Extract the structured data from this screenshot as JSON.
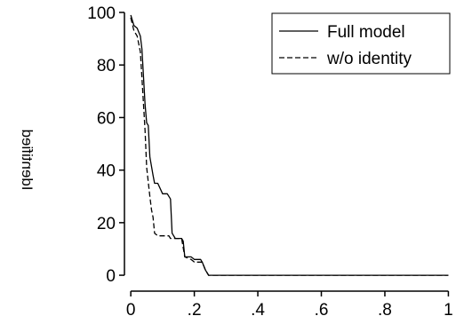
{
  "chart_data": {
    "type": "line",
    "title": "",
    "xlabel": "",
    "ylabel": "Identified",
    "ylabel_mirrored": true,
    "xlim": [
      -0.02,
      1.01
    ],
    "ylim": [
      -2,
      100
    ],
    "x_ticks": [
      0,
      0.2,
      0.4,
      0.6,
      0.8,
      1
    ],
    "x_tick_labels": [
      "0",
      ".2",
      ".4",
      ".6",
      ".8",
      "1"
    ],
    "y_ticks": [
      0,
      20,
      40,
      60,
      80,
      100
    ],
    "y_tick_labels": [
      "0",
      "20",
      "40",
      "60",
      "80",
      "100"
    ],
    "grid": false,
    "legend_position": "top-right",
    "series": [
      {
        "name": "Full model",
        "style": "solid",
        "color": "#000000",
        "points": [
          [
            0.0,
            99
          ],
          [
            0.01,
            95
          ],
          [
            0.02,
            94
          ],
          [
            0.03,
            91
          ],
          [
            0.035,
            86
          ],
          [
            0.045,
            65
          ],
          [
            0.05,
            58
          ],
          [
            0.055,
            57
          ],
          [
            0.06,
            45
          ],
          [
            0.07,
            38
          ],
          [
            0.075,
            35
          ],
          [
            0.085,
            35
          ],
          [
            0.1,
            31
          ],
          [
            0.115,
            31
          ],
          [
            0.125,
            29
          ],
          [
            0.13,
            16
          ],
          [
            0.14,
            14
          ],
          [
            0.16,
            14
          ],
          [
            0.165,
            13
          ],
          [
            0.17,
            7
          ],
          [
            0.19,
            7
          ],
          [
            0.2,
            6
          ],
          [
            0.22,
            6
          ],
          [
            0.225,
            5
          ],
          [
            0.235,
            2
          ],
          [
            0.245,
            0
          ],
          [
            0.3,
            0
          ],
          [
            0.6,
            0
          ],
          [
            1.0,
            0
          ]
        ]
      },
      {
        "name": "w/o identity",
        "style": "dashed",
        "color": "#000000",
        "points": [
          [
            0.0,
            98
          ],
          [
            0.01,
            93
          ],
          [
            0.02,
            91
          ],
          [
            0.03,
            85
          ],
          [
            0.035,
            75
          ],
          [
            0.045,
            55
          ],
          [
            0.05,
            41
          ],
          [
            0.06,
            30
          ],
          [
            0.065,
            25
          ],
          [
            0.07,
            22
          ],
          [
            0.075,
            16
          ],
          [
            0.085,
            15
          ],
          [
            0.12,
            15
          ],
          [
            0.125,
            14
          ],
          [
            0.16,
            14
          ],
          [
            0.17,
            7
          ],
          [
            0.19,
            6
          ],
          [
            0.2,
            5
          ],
          [
            0.225,
            5
          ],
          [
            0.235,
            2
          ],
          [
            0.245,
            0
          ],
          [
            0.3,
            0
          ],
          [
            0.6,
            0
          ],
          [
            1.0,
            0
          ]
        ]
      }
    ]
  }
}
